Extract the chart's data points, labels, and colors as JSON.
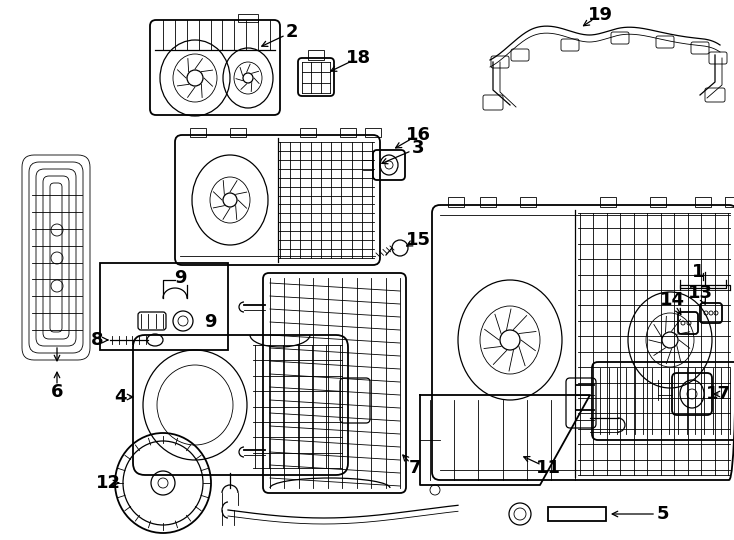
{
  "background_color": "#ffffff",
  "fig_width": 7.34,
  "fig_height": 5.4,
  "dpi": 100,
  "image_b64": ""
}
